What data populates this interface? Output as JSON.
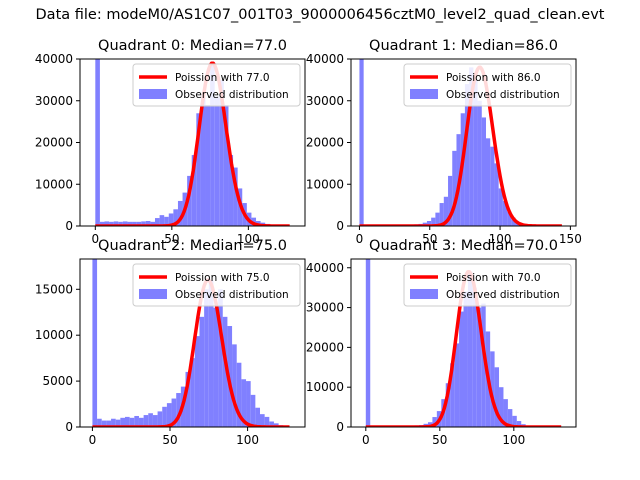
{
  "suptitle": "Data file: modeM0/AS1C07_001T03_9000006456cztM0_level2_quad_clean.evt",
  "colors": {
    "hist": "#8080ff",
    "poisson": "#ff0000",
    "axes": "#000000"
  },
  "chart_data": [
    {
      "type": "bar",
      "title": "Quadrant 0: Median=77.0",
      "xlim": [
        -10,
        137
      ],
      "ylim": [
        0,
        40000
      ],
      "xticks": [
        0,
        50,
        100
      ],
      "yticks": [
        0,
        10000,
        20000,
        30000,
        40000
      ],
      "legend": [
        "Poission with 77.0",
        "Observed distribution"
      ],
      "median": 77.0,
      "bin_width": 3,
      "hist_start": 0,
      "hist_values": [
        40000,
        1000,
        1100,
        1000,
        1100,
        1000,
        1100,
        1000,
        1000,
        1000,
        1100,
        1200,
        1000,
        1900,
        2600,
        2200,
        3000,
        4000,
        6000,
        8000,
        12000,
        17000,
        27000,
        31000,
        29000,
        39000,
        31000,
        35000,
        29000,
        17000,
        14000,
        9000,
        5500,
        3200,
        2000,
        1200,
        800,
        500,
        300,
        200,
        100,
        50,
        20
      ]
    },
    {
      "type": "bar",
      "title": "Quadrant 1: Median=86.0",
      "xlim": [
        -6,
        154
      ],
      "ylim": [
        0,
        40000
      ],
      "xticks": [
        0,
        50,
        100,
        150
      ],
      "yticks": [
        0,
        10000,
        20000,
        30000,
        40000
      ],
      "legend": [
        "Poission with 86.0",
        "Observed distribution"
      ],
      "median": 86.0,
      "bin_width": 3,
      "hist_start": 0,
      "hist_values": [
        40000,
        200,
        200,
        200,
        200,
        200,
        200,
        200,
        200,
        200,
        200,
        200,
        300,
        400,
        500,
        800,
        1200,
        2000,
        3200,
        5500,
        7000,
        12000,
        18000,
        22000,
        27000,
        34000,
        38000,
        35000,
        30000,
        26000,
        21000,
        19000,
        15000,
        9000,
        6000,
        3500,
        2000,
        1000,
        500,
        300,
        100,
        50,
        20,
        10,
        5,
        2,
        1,
        1,
        0
      ]
    },
    {
      "type": "bar",
      "title": "Quadrant 2: Median=75.0",
      "xlim": [
        -8,
        137
      ],
      "ylim": [
        0,
        18300
      ],
      "xticks": [
        0,
        50,
        100
      ],
      "yticks": [
        0,
        5000,
        10000,
        15000
      ],
      "legend": [
        "Poission with 75.0",
        "Observed distribution"
      ],
      "median": 75.0,
      "bin_width": 3,
      "hist_start": 0,
      "hist_values": [
        18300,
        900,
        700,
        700,
        900,
        800,
        1000,
        1100,
        1000,
        1200,
        1000,
        1300,
        1500,
        1300,
        1700,
        2200,
        2600,
        3100,
        3700,
        4400,
        6000,
        7500,
        9900,
        12000,
        15000,
        16000,
        13000,
        15000,
        12000,
        11000,
        9000,
        7000,
        5200,
        5000,
        3500,
        2100,
        1400,
        1100,
        600,
        400,
        200,
        100,
        50
      ]
    },
    {
      "type": "bar",
      "title": "Quadrant 3: Median=70.0",
      "xlim": [
        -10,
        142
      ],
      "ylim": [
        0,
        42200
      ],
      "xticks": [
        0,
        50,
        100
      ],
      "yticks": [
        0,
        10000,
        20000,
        30000,
        40000
      ],
      "legend": [
        "Poission with 70.0",
        "Observed distribution"
      ],
      "median": 70.0,
      "bin_width": 3,
      "hist_start": 0,
      "hist_values": [
        42200,
        200,
        200,
        200,
        200,
        200,
        200,
        200,
        200,
        200,
        300,
        400,
        500,
        800,
        1200,
        2500,
        4000,
        7000,
        11000,
        16000,
        21000,
        29000,
        34000,
        39000,
        35000,
        30000,
        31000,
        24000,
        19000,
        15000,
        10000,
        7000,
        4500,
        2800,
        1500,
        700,
        300,
        150,
        60,
        30,
        10,
        5
      ]
    }
  ]
}
